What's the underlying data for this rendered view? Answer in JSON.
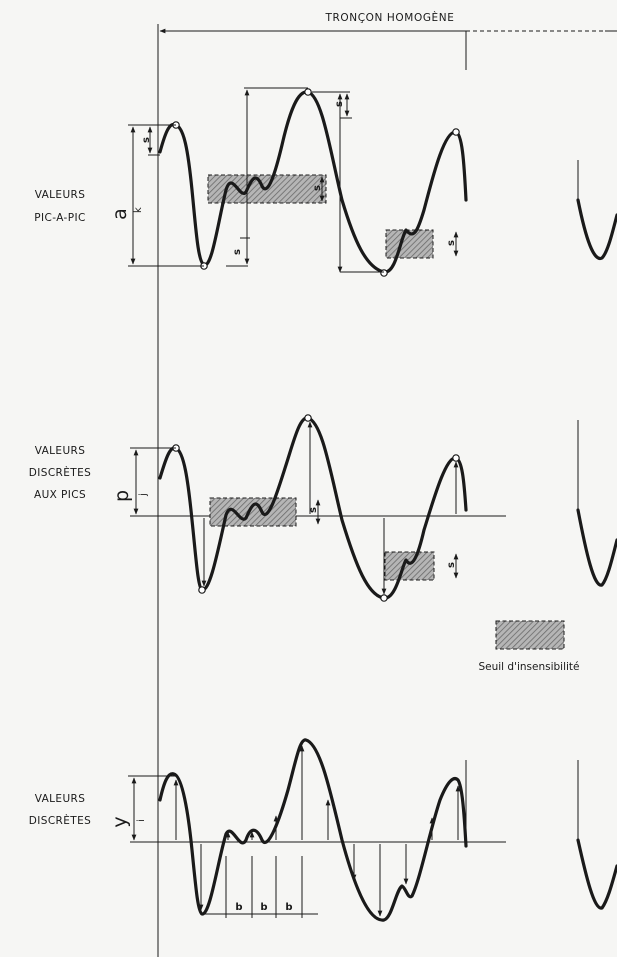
{
  "header": {
    "title": "TRONÇON HOMOGÈNE"
  },
  "rows": [
    {
      "line1": "VALEURS",
      "line2": "PIC-A-PIC",
      "symbol": "a",
      "subscript": "k"
    },
    {
      "line1": "VALEURS",
      "line2": "DISCRÈTES",
      "line3": "AUX PICS",
      "symbol": "p",
      "subscript": "j"
    },
    {
      "line1": "VALEURS",
      "line2": "DISCRÈTES",
      "symbol": "y",
      "subscript": "i"
    }
  ],
  "threshold_label": "s",
  "spacing_label": "b",
  "legend": {
    "label": "Seuil d'insensibilité"
  },
  "colors": {
    "ink": "#1a1a1a",
    "paper": "#f6f6f4",
    "band_fill": "#9a9a9a"
  }
}
